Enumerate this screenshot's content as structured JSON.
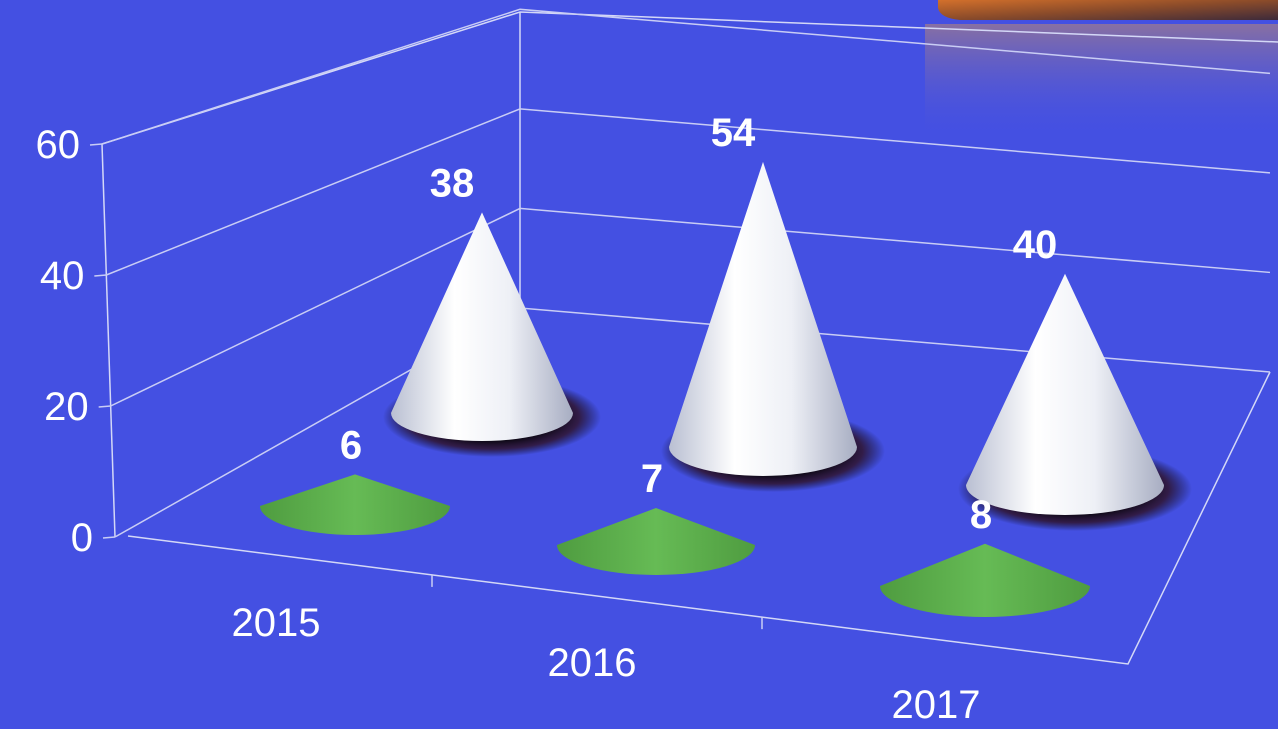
{
  "chart_data": {
    "type": "bar",
    "shape": "cone",
    "view": "3d",
    "categories": [
      "2015",
      "2016",
      "2017"
    ],
    "series": [
      {
        "values": [
          6,
          7,
          8
        ],
        "color": "#5db04d"
      },
      {
        "values": [
          38,
          54,
          40
        ],
        "color": "#f2f4fa"
      }
    ],
    "ylim": [
      0,
      60
    ],
    "yticks": [
      "0",
      "20",
      "40",
      "60"
    ],
    "grid": true,
    "legend": "none",
    "colors": {
      "background": "#4450e2",
      "gridline": "#c9cdf5"
    }
  }
}
